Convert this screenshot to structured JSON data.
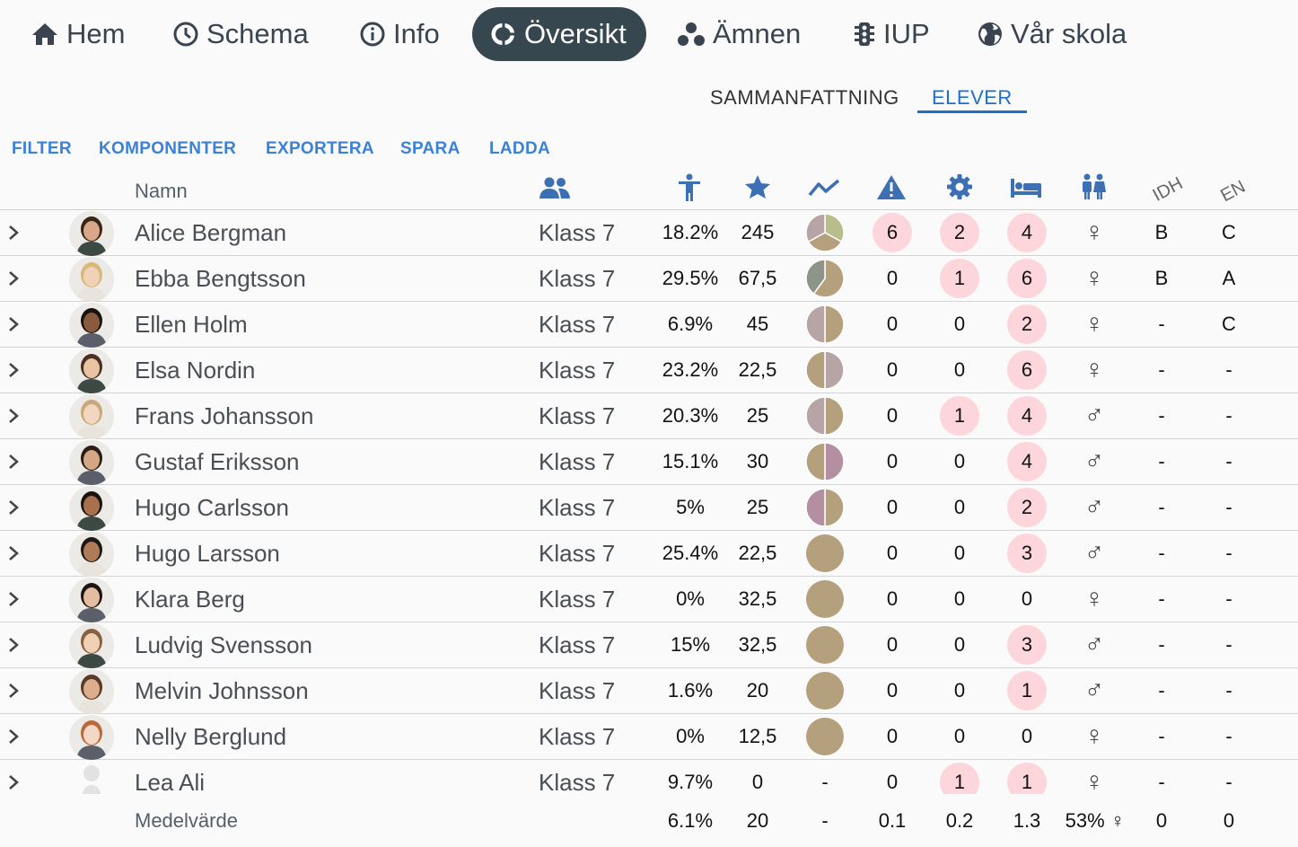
{
  "nav": {
    "items": [
      {
        "label": "Hem"
      },
      {
        "label": "Schema"
      },
      {
        "label": "Info"
      },
      {
        "label": "Översikt"
      },
      {
        "label": "Ämnen"
      },
      {
        "label": "IUP"
      },
      {
        "label": "Vår skola"
      }
    ],
    "active_color": "#37474f"
  },
  "subtabs": {
    "summary": "SAMMANFATTNING",
    "students": "ELEVER",
    "accent": "#1e6fc7"
  },
  "toolbar": {
    "filter": "FILTER",
    "components": "KOMPONENTER",
    "export": "EXPORTERA",
    "save": "SPARA",
    "load": "LADDA"
  },
  "columns": {
    "name": "Namn",
    "idh": "IDH",
    "en": "EN"
  },
  "students": [
    {
      "name": "Alice Bergman",
      "klass": "Klass 7",
      "absence": "18.2%",
      "score": "245",
      "pie": [
        0.33,
        0.34,
        0.33
      ],
      "warn": "6",
      "cog": "2",
      "bed": "4",
      "gender": "♀",
      "idh": "B",
      "en": "C"
    },
    {
      "name": "Ebba Bengtsson",
      "klass": "Klass 7",
      "absence": "29.5%",
      "score": "67,5",
      "pie": [
        0.6,
        0.4
      ],
      "warn": "0",
      "cog": "1",
      "bed": "6",
      "gender": "♀",
      "idh": "B",
      "en": "A"
    },
    {
      "name": "Ellen Holm",
      "klass": "Klass 7",
      "absence": "6.9%",
      "score": "45",
      "pie": [
        0.5,
        0.5
      ],
      "warn": "0",
      "cog": "0",
      "bed": "2",
      "gender": "♀",
      "idh": "-",
      "en": "C"
    },
    {
      "name": "Elsa Nordin",
      "klass": "Klass 7",
      "absence": "23.2%",
      "score": "22,5",
      "pie": [
        0.5,
        0.5
      ],
      "warn": "0",
      "cog": "0",
      "bed": "6",
      "gender": "♀",
      "idh": "-",
      "en": "-"
    },
    {
      "name": "Frans Johansson",
      "klass": "Klass 7",
      "absence": "20.3%",
      "score": "25",
      "pie": [
        0.5,
        0.5
      ],
      "warn": "0",
      "cog": "1",
      "bed": "4",
      "gender": "♂",
      "idh": "-",
      "en": "-"
    },
    {
      "name": "Gustaf Eriksson",
      "klass": "Klass 7",
      "absence": "15.1%",
      "score": "30",
      "pie": [
        0.5,
        0.5
      ],
      "warn": "0",
      "cog": "0",
      "bed": "4",
      "gender": "♂",
      "idh": "-",
      "en": "-"
    },
    {
      "name": "Hugo Carlsson",
      "klass": "Klass 7",
      "absence": "5%",
      "score": "25",
      "pie": [
        0.5,
        0.5
      ],
      "warn": "0",
      "cog": "0",
      "bed": "2",
      "gender": "♂",
      "idh": "-",
      "en": "-"
    },
    {
      "name": "Hugo Larsson",
      "klass": "Klass 7",
      "absence": "25.4%",
      "score": "22,5",
      "pie": [
        1
      ],
      "warn": "0",
      "cog": "0",
      "bed": "3",
      "gender": "♂",
      "idh": "-",
      "en": "-"
    },
    {
      "name": "Klara Berg",
      "klass": "Klass 7",
      "absence": "0%",
      "score": "32,5",
      "pie": [
        1
      ],
      "warn": "0",
      "cog": "0",
      "bed": "0",
      "gender": "♀",
      "idh": "-",
      "en": "-"
    },
    {
      "name": "Ludvig Svensson",
      "klass": "Klass 7",
      "absence": "15%",
      "score": "32,5",
      "pie": [
        1
      ],
      "warn": "0",
      "cog": "0",
      "bed": "3",
      "gender": "♂",
      "idh": "-",
      "en": "-"
    },
    {
      "name": "Melvin Johnsson",
      "klass": "Klass 7",
      "absence": "1.6%",
      "score": "20",
      "pie": [
        1
      ],
      "warn": "0",
      "cog": "0",
      "bed": "1",
      "gender": "♂",
      "idh": "-",
      "en": "-"
    },
    {
      "name": "Nelly Berglund",
      "klass": "Klass 7",
      "absence": "0%",
      "score": "12,5",
      "pie": [
        1
      ],
      "warn": "0",
      "cog": "0",
      "bed": "0",
      "gender": "♀",
      "idh": "-",
      "en": "-"
    },
    {
      "name": "Lea Ali",
      "klass": "Klass 7",
      "absence": "9.7%",
      "score": "0",
      "pie": [],
      "pie_text": "-",
      "warn": "0",
      "cog": "1",
      "bed": "1",
      "gender": "♀",
      "idh": "-",
      "en": "-"
    }
  ],
  "footer": {
    "label": "Medelvärde",
    "absence": "6.1%",
    "score": "20",
    "pie": "-",
    "warn": "0.1",
    "cog": "0.2",
    "bed": "1.3",
    "gender": "53% ♀",
    "idh": "0",
    "en": "0"
  },
  "colors": {
    "badge": "#fcd6da",
    "pie_tan": "#b5a07e",
    "pie_mauve": "#b6a4a6",
    "pie_grey": "#8e9488",
    "pie_green": "#b9bd8c",
    "pie_plum": "#b48fa2"
  }
}
